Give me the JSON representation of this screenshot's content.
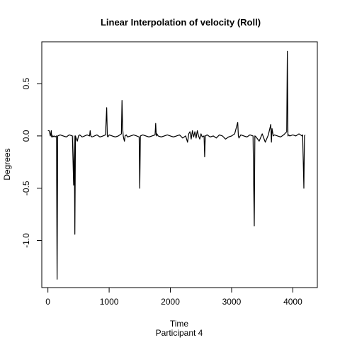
{
  "chart_data": {
    "type": "line",
    "title": "Linear Interpolation of velocity (Roll)",
    "xlabel": "Time",
    "subtitle": "Participant  4",
    "ylabel": "Degrees",
    "xlim": [
      -100,
      4400
    ],
    "ylim": [
      -1.45,
      0.9
    ],
    "x_ticks": [
      0,
      1000,
      2000,
      3000,
      4000
    ],
    "y_ticks": [
      -1.0,
      -0.5,
      0.0,
      0.5
    ],
    "y_tick_labels": [
      "-1.0",
      "-0.5",
      "0.0",
      "0.5"
    ],
    "grid": false,
    "legend": "none",
    "line_color": "#000000",
    "series": [
      {
        "x": [
          0,
          20,
          40,
          55,
          60,
          65,
          80,
          100,
          120,
          140,
          150,
          160,
          200,
          250,
          300,
          350,
          400,
          420,
          430,
          440,
          450,
          460,
          480,
          500,
          520,
          560,
          600,
          640,
          680,
          690,
          700,
          720,
          760,
          800,
          850,
          900,
          940,
          960,
          970,
          980,
          1000,
          1050,
          1100,
          1150,
          1200,
          1210,
          1220,
          1230,
          1240,
          1250,
          1260,
          1280,
          1300,
          1350,
          1400,
          1450,
          1490,
          1500,
          1510,
          1550,
          1600,
          1650,
          1700,
          1750,
          1760,
          1770,
          1780,
          1800,
          1850,
          1900,
          1950,
          2000,
          2050,
          2100,
          2150,
          2200,
          2250,
          2280,
          2300,
          2320,
          2340,
          2360,
          2380,
          2400,
          2420,
          2440,
          2460,
          2480,
          2500,
          2520,
          2550,
          2560,
          2570,
          2600,
          2650,
          2700,
          2750,
          2800,
          2850,
          2900,
          2950,
          3000,
          3050,
          3100,
          3110,
          3120,
          3150,
          3200,
          3250,
          3300,
          3350,
          3370,
          3380,
          3400,
          3450,
          3500,
          3550,
          3600,
          3640,
          3650,
          3660,
          3680,
          3700,
          3750,
          3800,
          3850,
          3900,
          3910,
          3920,
          3930,
          3950,
          4000,
          4050,
          4100,
          4150,
          4160,
          4170,
          4180,
          4190,
          4200
        ],
        "y": [
          0.05,
          0.05,
          0.0,
          0.05,
          -0.01,
          0.01,
          -0.01,
          0.0,
          -0.01,
          0.0,
          -1.37,
          0.0,
          0.01,
          0.0,
          -0.01,
          0.01,
          0.0,
          -0.47,
          0.0,
          -0.94,
          0.0,
          -0.02,
          -0.05,
          0.0,
          0.01,
          -0.01,
          0.0,
          0.01,
          0.0,
          0.05,
          0.0,
          -0.01,
          0.0,
          0.01,
          -0.01,
          0.0,
          0.01,
          0.27,
          0.0,
          -0.01,
          0.01,
          0.0,
          -0.01,
          0.0,
          0.02,
          0.34,
          0.08,
          0.0,
          -0.03,
          -0.05,
          0.0,
          0.01,
          -0.01,
          0.0,
          0.01,
          0.0,
          -0.01,
          -0.5,
          0.0,
          0.01,
          0.0,
          -0.01,
          0.0,
          0.01,
          0.12,
          0.0,
          0.02,
          0.0,
          -0.01,
          0.0,
          0.01,
          0.0,
          -0.01,
          0.0,
          0.01,
          -0.02,
          0.0,
          -0.06,
          0.02,
          0.04,
          -0.03,
          0.05,
          -0.01,
          0.04,
          -0.02,
          0.05,
          0.0,
          -0.03,
          0.02,
          -0.01,
          0.0,
          -0.2,
          0.0,
          0.01,
          -0.01,
          0.0,
          -0.02,
          0.01,
          0.0,
          -0.03,
          -0.01,
          0.0,
          0.02,
          0.13,
          0.0,
          -0.02,
          0.01,
          0.0,
          -0.01,
          0.01,
          0.0,
          -0.86,
          0.0,
          -0.01,
          -0.05,
          0.02,
          -0.06,
          0.01,
          0.11,
          -0.06,
          0.07,
          0.0,
          0.01,
          0.0,
          -0.01,
          0.01,
          0.04,
          0.81,
          0.0,
          0.01,
          0.0,
          0.01,
          0.0,
          0.02,
          0.0,
          0.01,
          -0.24,
          -0.5,
          0.0,
          0.01
        ]
      }
    ]
  }
}
